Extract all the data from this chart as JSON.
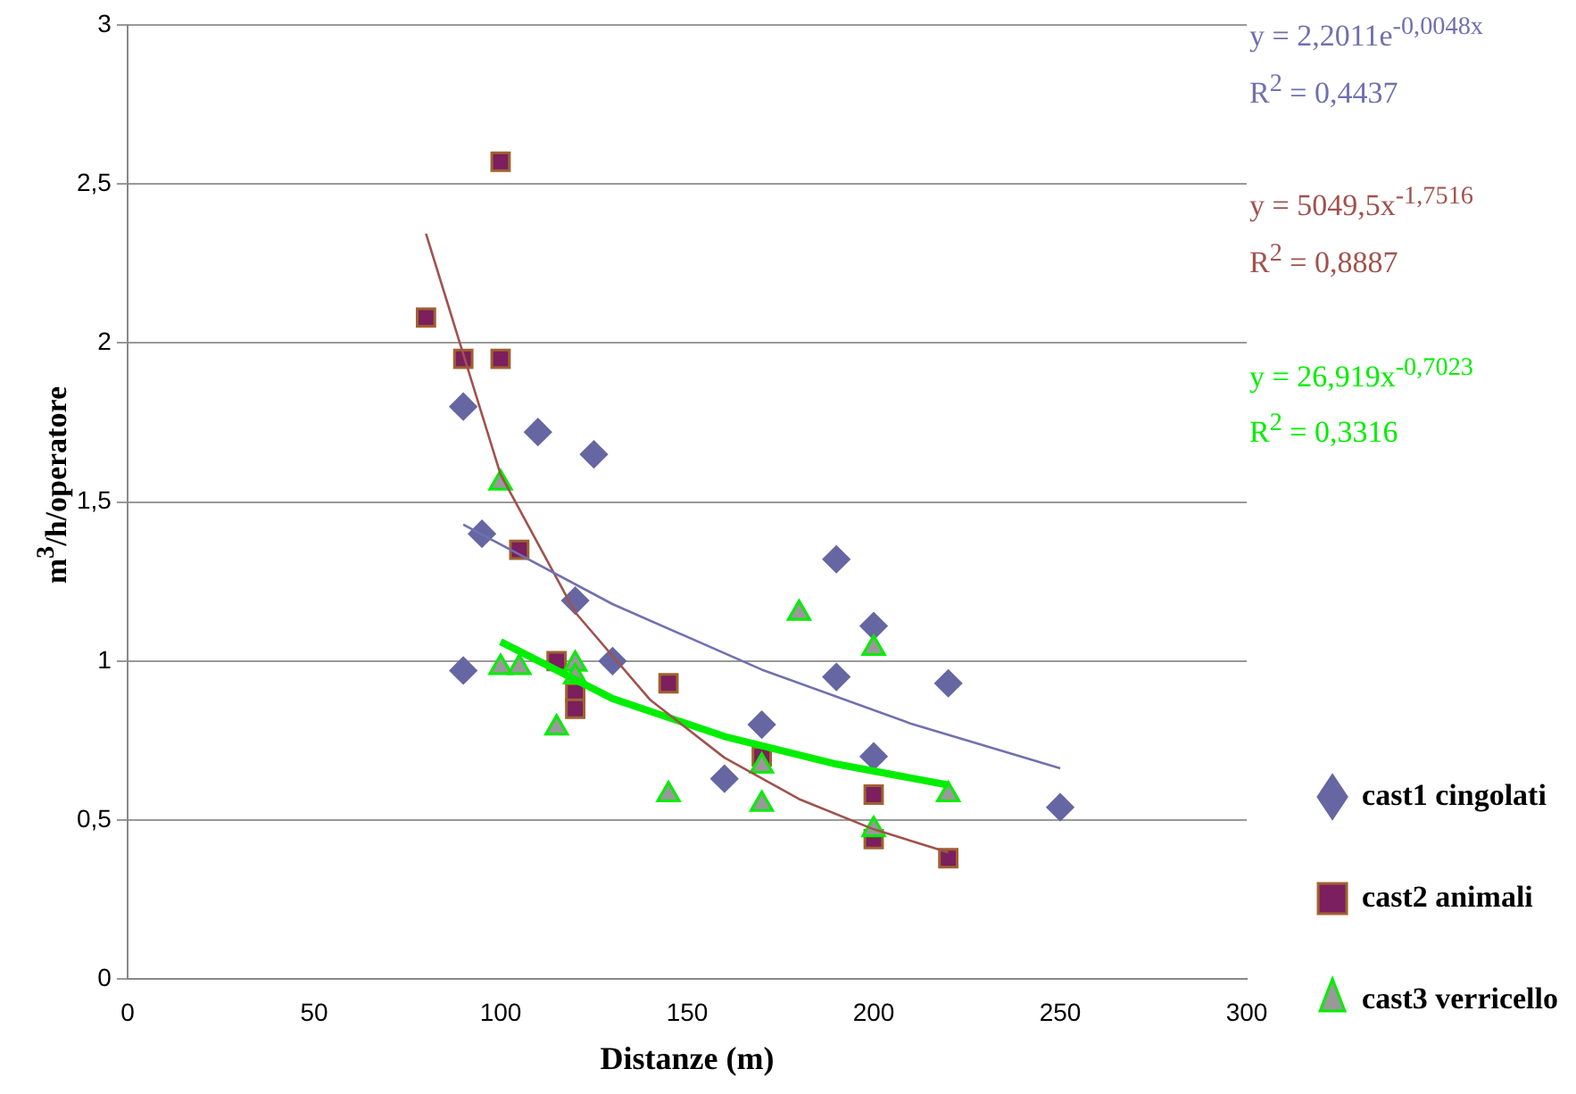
{
  "chart_data": {
    "type": "scatter",
    "xlabel": "Distanze (m)",
    "ylabel": "m$^{3}$/h/operatore",
    "xlim": [
      0,
      300
    ],
    "xticks": [
      0,
      50,
      100,
      150,
      200,
      250,
      300
    ],
    "ylim": [
      0,
      3
    ],
    "yticks": [
      0,
      {
        "value": 0.5,
        "label": "0,5"
      },
      1,
      {
        "value": 1.5,
        "label": "1,5"
      },
      2,
      {
        "value": 2.5,
        "label": "2,5"
      },
      3
    ],
    "grid": "y",
    "legend": "right",
    "series": [
      {
        "name": "cast1 cingolati",
        "color": "#6666a3",
        "marker": "diamond",
        "x": [
          90,
          90,
          95,
          110,
          120,
          125,
          130,
          160,
          170,
          190,
          190,
          200,
          200,
          220,
          250
        ],
        "values": [
          0.97,
          1.8,
          1.4,
          1.72,
          1.19,
          1.65,
          1.0,
          0.63,
          0.8,
          1.32,
          0.95,
          1.11,
          0.7,
          0.93,
          0.54
        ]
      },
      {
        "name": "cast2 animali",
        "color": "#7b1f5e",
        "marker": "square",
        "x": [
          80,
          90,
          100,
          100,
          105,
          115,
          120,
          120,
          145,
          170,
          200,
          200,
          220
        ],
        "values": [
          2.08,
          1.95,
          1.95,
          2.57,
          1.35,
          1.0,
          0.9,
          0.85,
          0.93,
          0.7,
          0.58,
          0.44,
          0.38
        ]
      },
      {
        "name": "cast3 verricello",
        "color": "#999999",
        "marker": "triangle",
        "x": [
          100,
          100,
          105,
          115,
          120,
          120,
          145,
          170,
          170,
          180,
          200,
          200,
          220
        ],
        "values": [
          1.56,
          0.98,
          0.98,
          0.79,
          0.99,
          0.95,
          0.58,
          0.55,
          0.67,
          1.15,
          1.04,
          0.47,
          0.58
        ]
      },
      {
        "type": "line",
        "color": "#7070b0",
        "marker": "none",
        "x": [
          90,
          130,
          170,
          210,
          250
        ],
        "values": [
          1.429,
          1.179,
          0.973,
          0.803,
          0.663
        ]
      },
      {
        "type": "line",
        "color": "#a0524d",
        "marker": "none",
        "x": [
          80,
          100,
          120,
          140,
          160,
          180,
          200,
          220
        ],
        "values": [
          2.344,
          1.586,
          1.153,
          0.879,
          0.696,
          0.566,
          0.471,
          0.398
        ]
      },
      {
        "type": "line",
        "color": "#00ee00",
        "marker": "none",
        "x": [
          100,
          130,
          160,
          190,
          220
        ],
        "values": [
          1.061,
          0.882,
          0.763,
          0.676,
          0.61
        ]
      }
    ],
    "annotations": [
      "y = 2,2011e$^{-0,0048x}$",
      "R$^{2}$ = 0,4437",
      "y = 5049,5x$^{-1,7516}$",
      "R$^{2}$ = 0,8887",
      "y = 26,919x$^{-0,7023}$",
      "R$^{2}$ = 0,3316"
    ]
  }
}
